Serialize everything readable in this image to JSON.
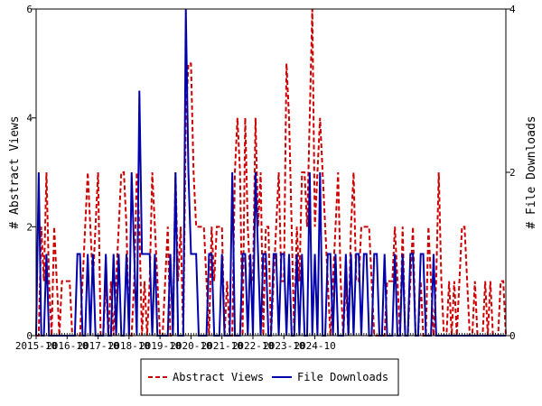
{
  "chart_data": {
    "type": "line",
    "xlabel": "",
    "ylabel": "# Abstract Views",
    "y2label": "# File Downloads",
    "ylim": [
      0,
      6
    ],
    "y2lim": [
      0,
      4
    ],
    "yticks": [
      "0",
      "2",
      "4",
      "6"
    ],
    "y2ticks": [
      "0",
      "2",
      "4"
    ],
    "xtick_labels": [
      "2015-10",
      "2016-10",
      "2017-10",
      "2018-10",
      "2019-10",
      "2020-10",
      "2021-10",
      "2022-10",
      "2023-10",
      "2024-10"
    ],
    "legend_position": "bottom-center",
    "series": [
      {
        "name": "Abstract Views",
        "axis": "left",
        "color": "#cc0000",
        "style": "dashed",
        "values": [
          0,
          0,
          2,
          1,
          3,
          1,
          0,
          2,
          1,
          0,
          1,
          1,
          1,
          1,
          0,
          0,
          0,
          0,
          1,
          2,
          3,
          2,
          1,
          2,
          3,
          0,
          0,
          1,
          0,
          1,
          0,
          1,
          2,
          3,
          3,
          2,
          0,
          0,
          1,
          3,
          2,
          0,
          1,
          0,
          1,
          3,
          2,
          1,
          0,
          0,
          1,
          2,
          0,
          0,
          3,
          1,
          2,
          0,
          4,
          5,
          5,
          3,
          2,
          2,
          2,
          2,
          1,
          0,
          2,
          1,
          2,
          2,
          2,
          0,
          1,
          0,
          0,
          3,
          4,
          3,
          0,
          4,
          2,
          1,
          1,
          4,
          2,
          3,
          0,
          2,
          2,
          0,
          1,
          2,
          3,
          1,
          1,
          5,
          4,
          2,
          0,
          2,
          1,
          3,
          3,
          2,
          4,
          6,
          2,
          3,
          4,
          3,
          2,
          1,
          0,
          1,
          2,
          3,
          1,
          0,
          1,
          0,
          2,
          3,
          1,
          1,
          2,
          2,
          2,
          2,
          1,
          0,
          0,
          0,
          0,
          0,
          1,
          1,
          1,
          2,
          1,
          0,
          2,
          0,
          0,
          1,
          2,
          0,
          0,
          1,
          0,
          0,
          2,
          1,
          0,
          1,
          3,
          1,
          0,
          0,
          1,
          0,
          1,
          0,
          1,
          2,
          2,
          1,
          0,
          0,
          1,
          0,
          0,
          0,
          1,
          0,
          1,
          0,
          0,
          0,
          1,
          1,
          0
        ]
      },
      {
        "name": "File Downloads",
        "axis": "right",
        "color": "#0000aa",
        "style": "solid",
        "values": [
          0,
          2,
          0,
          0,
          1,
          0,
          0,
          0,
          0,
          0,
          0,
          0,
          0,
          0,
          0,
          0,
          1,
          1,
          0,
          0,
          1,
          0,
          1,
          0,
          0,
          0,
          0,
          1,
          0,
          0,
          1,
          0,
          1,
          0,
          0,
          1,
          0,
          2,
          1,
          0,
          3,
          1,
          1,
          1,
          1,
          0,
          1,
          0,
          0,
          0,
          0,
          0,
          1,
          0,
          2,
          0,
          0,
          0,
          4,
          2,
          1,
          1,
          1,
          0,
          0,
          0,
          0,
          1,
          1,
          0,
          0,
          0,
          1,
          0,
          0,
          0,
          2,
          0,
          0,
          0,
          1,
          1,
          0,
          1,
          0,
          2,
          1,
          0,
          1,
          1,
          0,
          0,
          1,
          1,
          0,
          1,
          1,
          0,
          1,
          0,
          0,
          1,
          0,
          1,
          0,
          0,
          2,
          0,
          1,
          0,
          2,
          0,
          0,
          1,
          1,
          0,
          1,
          0,
          0,
          0,
          1,
          0,
          1,
          0,
          1,
          1,
          0,
          1,
          1,
          0,
          0,
          1,
          1,
          0,
          0,
          1,
          0,
          0,
          0,
          1,
          0,
          0,
          1,
          0,
          0,
          1,
          1,
          0,
          0,
          1,
          1,
          0,
          0,
          0,
          1,
          0,
          0,
          0,
          0,
          0,
          0,
          0,
          0,
          0,
          0,
          0,
          0,
          0,
          0,
          0,
          0,
          0,
          0,
          0,
          0,
          0,
          0,
          0,
          0,
          0,
          0,
          0,
          0
        ]
      }
    ]
  }
}
